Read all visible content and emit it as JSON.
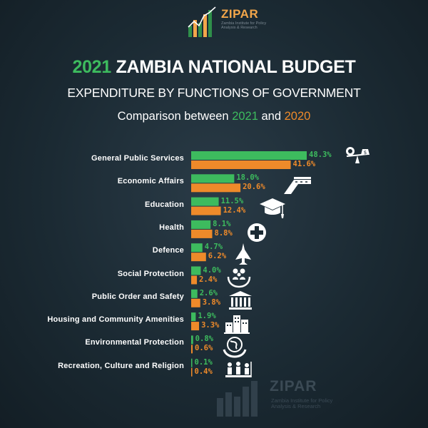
{
  "logo": {
    "name": "ZIPAR",
    "tagline": "Zambia Institute for Policy Analysis & Research"
  },
  "title": {
    "year": "2021",
    "rest": " ZAMBIA NATIONAL BUDGET"
  },
  "subtitle": "EXPENDITURE BY FUNCTIONS OF GOVERNMENT",
  "comparison": {
    "prefix": "Comparison between ",
    "a": "2021",
    "mid": " and ",
    "b": "2020"
  },
  "colors": {
    "series_2021": "#3dbb5e",
    "series_2020": "#ee8a2a",
    "background": "#1b2a33"
  },
  "chart_data": {
    "type": "bar",
    "orientation": "horizontal",
    "categories": [
      "General Public Services",
      "Economic Affairs",
      "Education",
      "Health",
      "Defence",
      "Social Protection",
      "Public Order and Safety",
      "Housing and Community Amenities",
      "Environmental Protection",
      "Recreation, Culture and Religion"
    ],
    "series": [
      {
        "name": "2021",
        "values": [
          48.3,
          18.0,
          11.5,
          8.1,
          4.7,
          4.0,
          2.6,
          1.9,
          0.8,
          0.1
        ],
        "labels": [
          "48.3%",
          "18.0%",
          "11.5%",
          "8.1%",
          "4.7%",
          "4.0%",
          "2.6%",
          "1.9%",
          "0.8%",
          "0.1%"
        ]
      },
      {
        "name": "2020",
        "values": [
          41.6,
          20.6,
          12.4,
          8.8,
          6.2,
          2.4,
          3.8,
          3.3,
          0.6,
          0.4
        ],
        "labels": [
          "41.6%",
          "20.6%",
          "12.4%",
          "8.8%",
          "6.2%",
          "2.4%",
          "3.8%",
          "3.3%",
          "0.6%",
          "0.4%"
        ]
      }
    ],
    "icons": [
      "scale-money-icon",
      "road-icon",
      "graduation-cap-icon",
      "health-cross-icon",
      "fighter-jet-icon",
      "family-protection-icon",
      "courthouse-icon",
      "buildings-icon",
      "globe-hands-icon",
      "recreation-icon"
    ],
    "xlim": [
      0,
      48.3
    ],
    "grid": false,
    "legend": "none"
  },
  "watermark": {
    "name": "ZIPAR",
    "tagline": "Zambia Institute for Policy Analysis & Research"
  }
}
